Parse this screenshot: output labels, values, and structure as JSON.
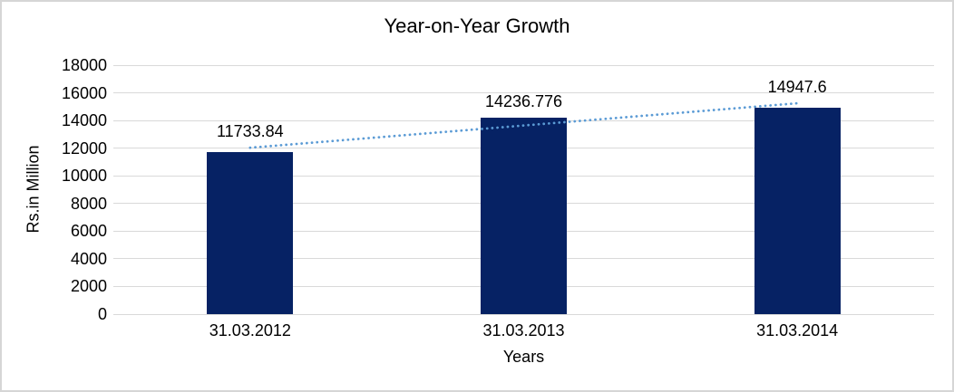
{
  "window": {
    "background": "#FFFFFF",
    "border_color": "#D6D6D6"
  },
  "chart_data": {
    "type": "bar",
    "title": "Year-on-Year Growth",
    "xlabel": "Years",
    "ylabel": "Rs.in Million",
    "categories": [
      "31.03.2012",
      "31.03.2013",
      "31.03.2014"
    ],
    "values": [
      11733.84,
      14236.776,
      14947.6
    ],
    "data_labels": [
      "11733.84",
      "14236.776",
      "14947.6"
    ],
    "ylim": [
      0,
      18000
    ],
    "yticks": [
      0,
      2000,
      4000,
      6000,
      8000,
      10000,
      12000,
      14000,
      16000,
      18000
    ],
    "grid": true,
    "legend": "none",
    "trendline": {
      "type": "linear",
      "style": "dotted",
      "color": "#5B9BD5"
    },
    "colors": {
      "bar": "#062264",
      "gridline": "#D9D9D9",
      "text": "#000000"
    }
  }
}
